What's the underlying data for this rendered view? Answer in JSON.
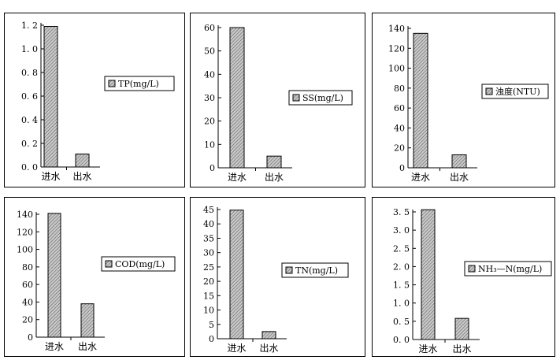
{
  "chart_data": [
    {
      "type": "bar",
      "categories": [
        "进水",
        "出水"
      ],
      "values": [
        1.19,
        0.11
      ],
      "legend": "TP(mg/L)",
      "ylim": [
        0,
        1.2
      ],
      "yticks": [
        0,
        0.2,
        0.4,
        0.6,
        0.8,
        1.0,
        1.2
      ],
      "ytick_labels": [
        "0. 0",
        "0. 2",
        "0. 4",
        "0. 6",
        "0. 8",
        "1. 0",
        "1. 2"
      ],
      "grid": false
    },
    {
      "type": "bar",
      "categories": [
        "进水",
        "出水"
      ],
      "values": [
        60,
        5
      ],
      "legend": "SS(mg/L)",
      "ylim": [
        0,
        60
      ],
      "yticks": [
        0,
        10,
        20,
        30,
        40,
        50,
        60
      ],
      "ytick_labels": [
        "0",
        "10",
        "20",
        "30",
        "40",
        "50",
        "60"
      ],
      "grid": false
    },
    {
      "type": "bar",
      "categories": [
        "进水",
        "出水"
      ],
      "values": [
        135,
        13
      ],
      "legend": "浊度(NTU)",
      "ylim": [
        0,
        140
      ],
      "yticks": [
        0,
        20,
        40,
        60,
        80,
        100,
        120,
        140
      ],
      "ytick_labels": [
        "0",
        "20",
        "40",
        "60",
        "80",
        "100",
        "120",
        "140"
      ],
      "grid": false
    },
    {
      "type": "bar",
      "categories": [
        "进水",
        "出水"
      ],
      "values": [
        141,
        38
      ],
      "legend": "COD(mg/L)",
      "ylim": [
        0,
        140
      ],
      "yticks": [
        0,
        20,
        40,
        60,
        80,
        100,
        120,
        140
      ],
      "ytick_labels": [
        "0",
        "20",
        "40",
        "60",
        "80",
        "100",
        "120",
        "140"
      ],
      "grid": false
    },
    {
      "type": "bar",
      "categories": [
        "进水",
        "出水"
      ],
      "values": [
        44.8,
        2.5
      ],
      "legend": "TN(mg/L)",
      "ylim": [
        0,
        45
      ],
      "yticks": [
        0,
        5,
        10,
        15,
        20,
        25,
        30,
        35,
        40,
        45
      ],
      "ytick_labels": [
        "0",
        "5",
        "10",
        "15",
        "20",
        "25",
        "30",
        "35",
        "40",
        "45"
      ],
      "grid": false
    },
    {
      "type": "bar",
      "categories": [
        "进水",
        "出水"
      ],
      "values": [
        3.56,
        0.58
      ],
      "legend": "NH₃—N(mg/L)",
      "ylim": [
        0,
        3.5
      ],
      "yticks": [
        0,
        0.5,
        1.0,
        1.5,
        2.0,
        2.5,
        3.0,
        3.5
      ],
      "ytick_labels": [
        "0. 0",
        "0. 5",
        "1. 0",
        "1. 5",
        "2. 0",
        "2. 5",
        "3. 0",
        "3. 5"
      ],
      "grid": false
    }
  ],
  "colors": {
    "bar_fill": "#c8c8c8",
    "bar_hatch": "#555555",
    "frame": "#000000"
  }
}
